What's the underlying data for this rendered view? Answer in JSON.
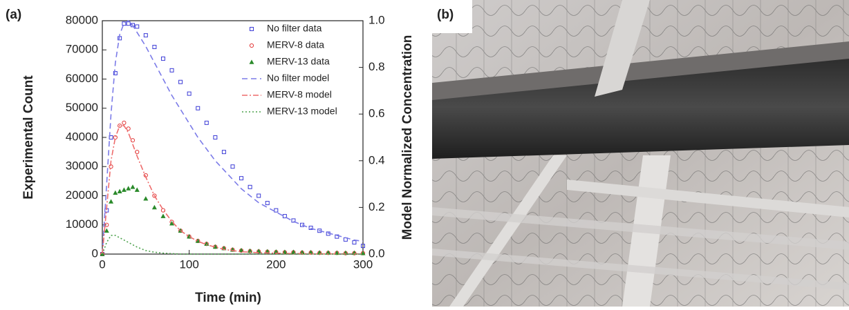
{
  "panel_labels": [
    "(a)",
    "(b)"
  ],
  "chart_data": {
    "type": "line",
    "xlabel": "Time (min)",
    "ylabel": "Experimental Count",
    "y2label": "Model Normalized Concentration",
    "x": [
      0,
      5,
      10,
      15,
      20,
      25,
      30,
      35,
      40,
      50,
      60,
      70,
      80,
      90,
      100,
      110,
      120,
      130,
      140,
      150,
      160,
      170,
      180,
      190,
      200,
      210,
      220,
      230,
      240,
      250,
      260,
      270,
      280,
      290,
      300
    ],
    "xlim": [
      0,
      300
    ],
    "xticks": [
      0,
      100,
      200,
      300
    ],
    "ylim": [
      0,
      80000
    ],
    "yticks": [
      0,
      10000,
      20000,
      30000,
      40000,
      50000,
      60000,
      70000,
      80000
    ],
    "y2lim": [
      0,
      1.0
    ],
    "y2ticks": [
      {
        "value": 0,
        "label": "0.0"
      },
      0.2,
      0.4,
      0.6,
      0.8,
      {
        "value": 1,
        "label": "1.0"
      }
    ],
    "legend": "upper right",
    "series": [
      {
        "name": "No filter data",
        "color": "#3b3bd6",
        "marker": "square",
        "values": [
          0,
          15000,
          40000,
          62000,
          74000,
          79000,
          79000,
          78500,
          78000,
          75000,
          71000,
          67000,
          63000,
          59000,
          55000,
          50000,
          45000,
          40000,
          35000,
          30000,
          26000,
          23000,
          20000,
          17500,
          15000,
          13000,
          11500,
          10000,
          9000,
          8000,
          7000,
          6000,
          5000,
          4000,
          2800
        ]
      },
      {
        "name": "MERV-8 data",
        "color": "#e23b3b",
        "marker": "circle",
        "values": [
          0,
          10000,
          30000,
          40000,
          44000,
          45000,
          43000,
          39000,
          35000,
          27000,
          20000,
          15000,
          11000,
          8000,
          6000,
          4500,
          3500,
          2500,
          2000,
          1500,
          1200,
          1000,
          900,
          800,
          700,
          600,
          600,
          500,
          500,
          400,
          400,
          400,
          300,
          300,
          300
        ]
      },
      {
        "name": "MERV-13 data",
        "color": "#2a8a2a",
        "marker": "triangle",
        "values": [
          0,
          8000,
          18000,
          21000,
          21500,
          22000,
          22500,
          23000,
          22000,
          19000,
          16000,
          13000,
          10500,
          8000,
          6000,
          4500,
          3500,
          2500,
          2000,
          1500,
          1300,
          1100,
          1000,
          900,
          800,
          700,
          700,
          600,
          600,
          500,
          500,
          400,
          400,
          400,
          300
        ]
      },
      {
        "name": "No filter model",
        "color": "#7b7be8",
        "dash": "8 5",
        "axis": "y2",
        "values": [
          0,
          0.3,
          0.6,
          0.82,
          0.94,
          0.99,
          1.0,
          0.98,
          0.95,
          0.89,
          0.82,
          0.75,
          0.68,
          0.62,
          0.56,
          0.5,
          0.45,
          0.4,
          0.36,
          0.32,
          0.28,
          0.25,
          0.22,
          0.2,
          0.18,
          0.16,
          0.14,
          0.125,
          0.11,
          0.1,
          0.09,
          0.08,
          0.07,
          0.06,
          0.055
        ]
      },
      {
        "name": "MERV-8 model",
        "color": "#ee6b6b",
        "dash": "8 3 2 3",
        "axis": "y2",
        "values": [
          0,
          0.2,
          0.4,
          0.5,
          0.55,
          0.55,
          0.52,
          0.47,
          0.42,
          0.33,
          0.25,
          0.19,
          0.14,
          0.1,
          0.075,
          0.055,
          0.04,
          0.03,
          0.02,
          0.015,
          0.01,
          0.008,
          0.006,
          0.005,
          0.004,
          0.003,
          0.002,
          0.002,
          0.001,
          0.001,
          0.001,
          0.001,
          0.001,
          0.001,
          0.001
        ]
      },
      {
        "name": "MERV-13 model",
        "color": "#4aa04a",
        "dash": "2 3",
        "axis": "y2",
        "values": [
          0,
          0.05,
          0.08,
          0.08,
          0.07,
          0.06,
          0.05,
          0.04,
          0.03,
          0.015,
          0.008,
          0.004,
          0.002,
          0,
          0,
          0,
          0,
          0,
          0,
          0,
          0,
          0,
          0,
          0,
          0,
          0,
          0,
          0,
          0,
          0,
          0,
          0,
          0,
          0,
          0
        ]
      }
    ]
  }
}
